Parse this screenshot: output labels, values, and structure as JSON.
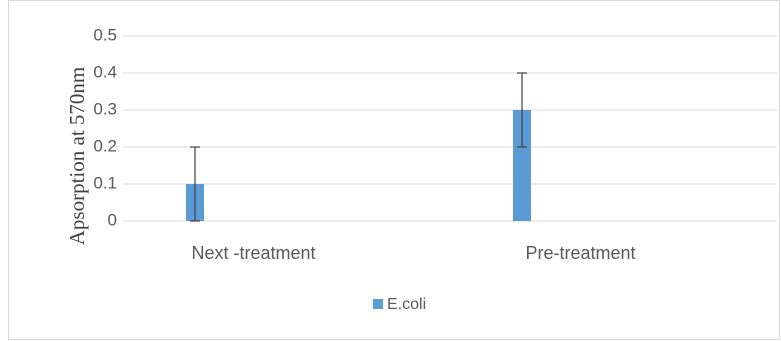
{
  "chart_data": {
    "type": "bar",
    "title": "",
    "xlabel": "",
    "ylabel": "Apsorption at 570nm",
    "categories": [
      "Next -treatment",
      "Pre-treatment"
    ],
    "series": [
      {
        "name": "E.coli",
        "values": [
          0.1,
          0.3
        ],
        "error": [
          0.1,
          0.1
        ],
        "color": "#5b9bd5"
      }
    ],
    "ylim": [
      0,
      0.5
    ],
    "yticks": [
      0,
      0.1,
      0.2,
      0.3,
      0.4,
      0.5
    ],
    "ytick_labels": [
      "0",
      "0.1",
      "0.2",
      "0.3",
      "0.4",
      "0.5"
    ],
    "grid": true,
    "legend": "bottom",
    "colors": {
      "gridline": "#d9d9d9",
      "errorbar": "#404040"
    }
  }
}
